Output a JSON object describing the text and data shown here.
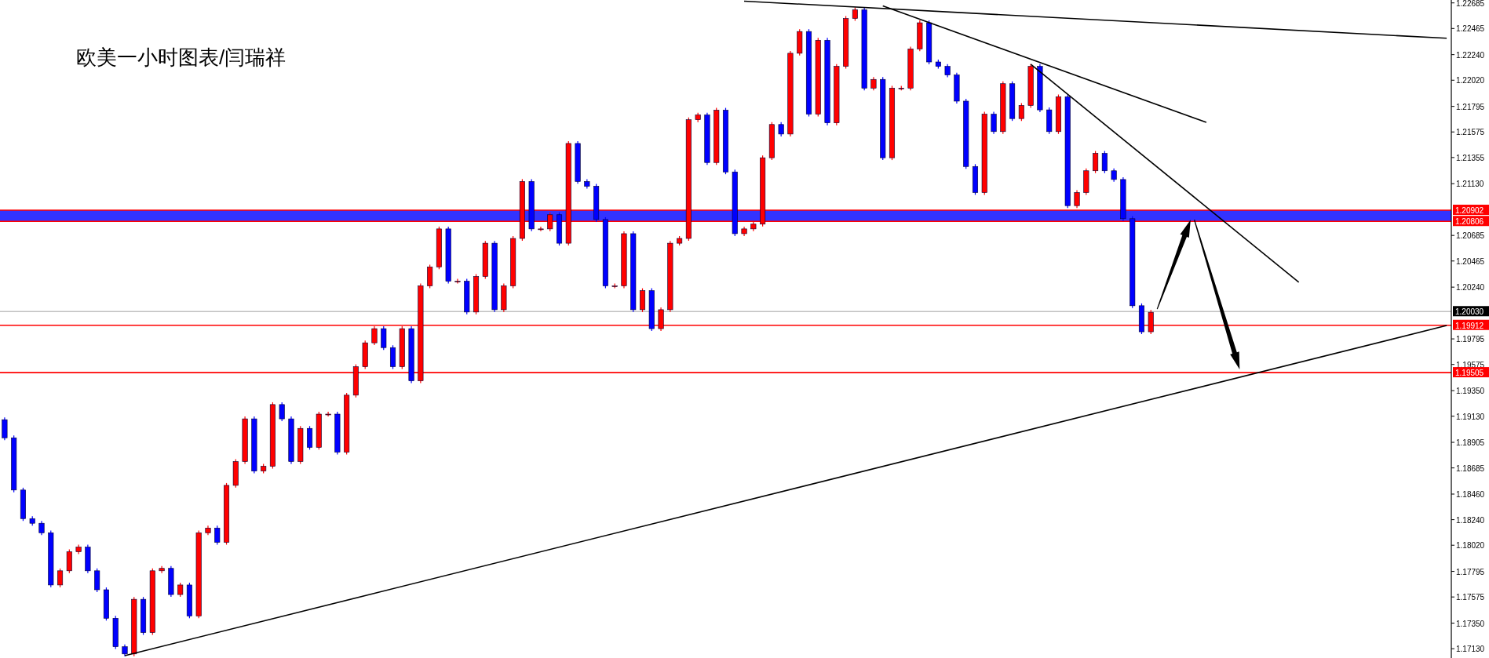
{
  "chart_data": {
    "type": "candlestick",
    "title": "欧美一小时图表/闫瑞祥",
    "categories": [
      null,
      null,
      null,
      null,
      null,
      null,
      null,
      null,
      null,
      null,
      null,
      null,
      null,
      null,
      null,
      null,
      null,
      null,
      null,
      null,
      null,
      null,
      null,
      null,
      null,
      null,
      null,
      null,
      null,
      null,
      null,
      null,
      null,
      null,
      null,
      null,
      null,
      null,
      null,
      null,
      null,
      null,
      null,
      null,
      null,
      null,
      null,
      null,
      null,
      null,
      null,
      null,
      null,
      null,
      null,
      null,
      null,
      null,
      null,
      null,
      null,
      null,
      null,
      null,
      null,
      null,
      null,
      null,
      null,
      null,
      null,
      null,
      null,
      null,
      null,
      null,
      null,
      null,
      null,
      null,
      null,
      null,
      null,
      null,
      null,
      null,
      null,
      null,
      null,
      null,
      null,
      null,
      null,
      null,
      null,
      null,
      null,
      null,
      null,
      null,
      null,
      null,
      null,
      null,
      null,
      null,
      null,
      null,
      null,
      null,
      null,
      null,
      null,
      null,
      null,
      null,
      null,
      null,
      null,
      null,
      null,
      null,
      null,
      null,
      null,
      null,
      null,
      null,
      null,
      null,
      null,
      null,
      null,
      null,
      null,
      null,
      null,
      null,
      null,
      null,
      null,
      null,
      null,
      null,
      null,
      null,
      null,
      null,
      null,
      null,
      null,
      null,
      null,
      null,
      null,
      null,
      null
    ],
    "colors": [
      "#0000ff",
      "#0000ff",
      "#0000ff",
      "#0000ff",
      "#0000ff",
      "#0000ff",
      "#ff0000",
      "#ff0000",
      "#ff0000",
      "#0000ff",
      "#0000ff",
      "#0000ff",
      "#0000ff",
      "#0000ff",
      "#ff0000",
      "#0000ff",
      "#ff0000",
      "#ff0000",
      "#0000ff",
      "#ff0000",
      "#0000ff",
      "#ff0000",
      "#ff0000",
      "#0000ff",
      "#ff0000",
      "#ff0000",
      "#ff0000",
      "#0000ff",
      "#ff0000",
      "#ff0000",
      "#0000ff",
      "#0000ff",
      "#ff0000",
      "#0000ff",
      "#ff0000",
      "#ff0000",
      "#0000ff",
      "#ff0000",
      "#ff0000",
      "#ff0000",
      "#ff0000",
      "#0000ff",
      "#0000ff",
      "#ff0000",
      "#0000ff",
      "#ff0000",
      "#ff0000",
      "#ff0000",
      "#0000ff",
      "#ff0000",
      "#0000ff",
      "#ff0000",
      "#ff0000",
      "#0000ff",
      "#ff0000",
      "#ff0000",
      "#ff0000",
      "#0000ff",
      "#ff0000",
      "#ff0000",
      "#0000ff",
      "#ff0000",
      "#0000ff",
      "#0000ff",
      "#0000ff",
      "#0000ff",
      "#ff0000",
      "#ff0000",
      "#0000ff",
      "#ff0000",
      "#0000ff",
      "#ff0000",
      "#ff0000",
      "#ff0000",
      "#ff0000",
      "#ff0000",
      "#0000ff",
      "#ff0000",
      "#0000ff",
      "#0000ff",
      "#ff0000",
      "#ff0000",
      "#ff0000",
      "#ff0000",
      "#0000ff",
      "#ff0000",
      "#ff0000",
      "#0000ff",
      "#ff0000",
      "#0000ff",
      "#ff0000",
      "#ff0000",
      "#ff0000",
      "#0000ff",
      "#ff0000",
      "#0000ff",
      "#ff0000",
      "#ff0000",
      "#ff0000",
      "#ff0000",
      "#0000ff",
      "#0000ff",
      "#0000ff",
      "#0000ff",
      "#0000ff",
      "#0000ff",
      "#ff0000",
      "#0000ff",
      "#ff0000",
      "#0000ff",
      "#ff0000",
      "#ff0000",
      "#0000ff",
      "#0000ff",
      "#ff0000",
      "#0000ff",
      "#ff0000",
      "#ff0000",
      "#ff0000",
      "#0000ff",
      "#0000ff",
      "#0000ff",
      "#0000ff",
      "#0000ff",
      "#ff0000",
      null,
      null,
      null,
      null,
      null,
      null,
      null,
      null,
      null,
      null,
      null,
      null,
      null,
      null,
      null,
      null,
      null,
      null,
      null,
      null,
      null,
      null,
      null,
      null,
      null,
      null,
      null,
      null,
      null,
      null,
      null,
      null
    ],
    "ohlc": [
      [
        1.191,
        1.1912,
        1.18924,
        1.18944
      ],
      [
        1.18944,
        1.18964,
        1.18475,
        1.18495
      ],
      [
        1.18495,
        1.18515,
        1.18229,
        1.18249
      ],
      [
        1.18249,
        1.18269,
        1.18189,
        1.18209
      ],
      [
        1.18209,
        1.18229,
        1.18107,
        1.18127
      ],
      [
        1.18127,
        1.18147,
        1.17658,
        1.17678
      ],
      [
        1.17678,
        1.1782,
        1.17658,
        1.178
      ],
      [
        1.178,
        1.17984,
        1.1778,
        1.17964
      ],
      [
        1.17964,
        1.18024,
        1.17944,
        1.18004
      ],
      [
        1.18004,
        1.18024,
        1.1778,
        1.178
      ],
      [
        1.178,
        1.1782,
        1.17617,
        1.17637
      ],
      [
        1.17637,
        1.17657,
        1.17372,
        1.17392
      ],
      [
        1.17392,
        1.17412,
        1.17127,
        1.17147
      ],
      [
        1.17147,
        1.17167,
        1.17065,
        1.17085
      ],
      [
        1.17085,
        1.17575,
        1.17065,
        1.17555
      ],
      [
        1.17555,
        1.17575,
        1.17249,
        1.17269
      ],
      [
        1.17269,
        1.1782,
        1.17249,
        1.178
      ],
      [
        1.178,
        1.17841,
        1.1778,
        1.17821
      ],
      [
        1.17821,
        1.17841,
        1.17576,
        1.17596
      ],
      [
        1.17596,
        1.17698,
        1.17576,
        1.17678
      ],
      [
        1.17678,
        1.17698,
        1.17392,
        1.17412
      ],
      [
        1.17412,
        1.18147,
        1.17392,
        1.18127
      ],
      [
        1.18127,
        1.18188,
        1.18107,
        1.18168
      ],
      [
        1.18168,
        1.18188,
        1.18025,
        1.18045
      ],
      [
        1.18045,
        1.18555,
        1.18025,
        1.18535
      ],
      [
        1.18535,
        1.1876,
        1.18515,
        1.1874
      ],
      [
        1.1874,
        1.19127,
        1.1872,
        1.19107
      ],
      [
        1.19107,
        1.19127,
        1.18638,
        1.18658
      ],
      [
        1.18658,
        1.18719,
        1.18638,
        1.18699
      ],
      [
        1.18699,
        1.1925,
        1.18679,
        1.1923
      ],
      [
        1.1923,
        1.1925,
        1.19087,
        1.19107
      ],
      [
        1.19107,
        1.19127,
        1.1872,
        1.1874
      ],
      [
        1.1874,
        1.19045,
        1.1872,
        1.19025
      ],
      [
        1.19025,
        1.19045,
        1.18842,
        1.18862
      ],
      [
        1.18862,
        1.19168,
        1.18842,
        1.19148
      ],
      [
        1.19148,
        1.19168,
        1.19128,
        1.19148
      ],
      [
        1.19148,
        1.19168,
        1.18801,
        1.18821
      ],
      [
        1.18821,
        1.19331,
        1.18801,
        1.19311
      ],
      [
        1.19311,
        1.19576,
        1.19291,
        1.19556
      ],
      [
        1.19556,
        1.19781,
        1.19536,
        1.19761
      ],
      [
        1.19761,
        1.19903,
        1.19741,
        1.19883
      ],
      [
        1.19883,
        1.19903,
        1.197,
        1.1972
      ],
      [
        1.1972,
        1.1974,
        1.19536,
        1.19556
      ],
      [
        1.19556,
        1.19903,
        1.19536,
        1.19883
      ],
      [
        1.19883,
        1.19903,
        1.19414,
        1.19434
      ],
      [
        1.19434,
        1.20271,
        1.19414,
        1.20251
      ],
      [
        1.20251,
        1.20434,
        1.20231,
        1.20414
      ],
      [
        1.20414,
        1.20761,
        1.20394,
        1.20741
      ],
      [
        1.20741,
        1.20761,
        1.20271,
        1.20291
      ],
      [
        1.20291,
        1.20311,
        1.20271,
        1.20291
      ],
      [
        1.20291,
        1.20311,
        1.20006,
        1.20026
      ],
      [
        1.20026,
        1.20352,
        1.20006,
        1.20332
      ],
      [
        1.20332,
        1.20638,
        1.20312,
        1.20618
      ],
      [
        1.20618,
        1.20638,
        1.20026,
        1.20046
      ],
      [
        1.20046,
        1.20271,
        1.20026,
        1.20251
      ],
      [
        1.20251,
        1.20679,
        1.20231,
        1.20659
      ],
      [
        1.20659,
        1.21169,
        1.20639,
        1.21149
      ],
      [
        1.21149,
        1.21169,
        1.20721,
        1.20741
      ],
      [
        1.20741,
        1.20761,
        1.20721,
        1.20741
      ],
      [
        1.20741,
        1.20883,
        1.20721,
        1.20863
      ],
      [
        1.20863,
        1.20883,
        1.20598,
        1.20618
      ],
      [
        1.20618,
        1.21496,
        1.20598,
        1.21476
      ],
      [
        1.21476,
        1.21496,
        1.21129,
        1.21149
      ],
      [
        1.21149,
        1.21169,
        1.21088,
        1.21108
      ],
      [
        1.21108,
        1.21128,
        1.20802,
        1.20822
      ],
      [
        1.20822,
        1.20842,
        1.20231,
        1.20251
      ],
      [
        1.20251,
        1.20271,
        1.20231,
        1.20251
      ],
      [
        1.20251,
        1.2072,
        1.20231,
        1.207
      ],
      [
        1.207,
        1.2072,
        1.20026,
        1.20046
      ],
      [
        1.20046,
        1.2023,
        1.20026,
        1.2021
      ],
      [
        1.2021,
        1.2023,
        1.19863,
        1.19883
      ],
      [
        1.19883,
        1.20066,
        1.19863,
        1.20046
      ],
      [
        1.20046,
        1.20638,
        1.20026,
        1.20618
      ],
      [
        1.20618,
        1.20679,
        1.20598,
        1.20659
      ],
      [
        1.20659,
        1.217,
        1.20639,
        1.2168
      ],
      [
        1.2168,
        1.21741,
        1.2166,
        1.21721
      ],
      [
        1.21721,
        1.21741,
        1.21292,
        1.21312
      ],
      [
        1.21312,
        1.21782,
        1.21292,
        1.21762
      ],
      [
        1.21762,
        1.21782,
        1.21211,
        1.21231
      ],
      [
        1.21231,
        1.21251,
        1.2068,
        1.207
      ],
      [
        1.207,
        1.20761,
        1.2068,
        1.20741
      ],
      [
        1.20741,
        1.20802,
        1.20721,
        1.20782
      ],
      [
        1.20782,
        1.21373,
        1.20762,
        1.21353
      ],
      [
        1.21353,
        1.21659,
        1.21333,
        1.21639
      ],
      [
        1.21639,
        1.21659,
        1.21537,
        1.21557
      ],
      [
        1.21557,
        1.22272,
        1.21537,
        1.22252
      ],
      [
        1.22252,
        1.22459,
        1.22232,
        1.22439
      ],
      [
        1.22439,
        1.22459,
        1.21708,
        1.21728
      ],
      [
        1.21728,
        1.22384,
        1.21708,
        1.22364
      ],
      [
        1.22364,
        1.22384,
        1.21633,
        1.21653
      ],
      [
        1.21653,
        1.22159,
        1.21633,
        1.22139
      ],
      [
        1.22139,
        1.22571,
        1.22119,
        1.22551
      ],
      [
        1.22551,
        1.22646,
        1.22531,
        1.22626
      ],
      [
        1.22626,
        1.22646,
        1.21932,
        1.21952
      ],
      [
        1.21952,
        1.22047,
        1.21932,
        1.22027
      ],
      [
        1.22027,
        1.22047,
        1.21333,
        1.21353
      ],
      [
        1.21353,
        1.21972,
        1.21333,
        1.21952
      ],
      [
        1.21952,
        1.21972,
        1.21932,
        1.21952
      ],
      [
        1.21952,
        1.22309,
        1.21932,
        1.22289
      ],
      [
        1.22289,
        1.22534,
        1.22269,
        1.22514
      ],
      [
        1.22514,
        1.22534,
        1.22157,
        1.22177
      ],
      [
        1.22177,
        1.22197,
        1.22119,
        1.22139
      ],
      [
        1.22139,
        1.22159,
        1.22045,
        1.22065
      ],
      [
        1.22065,
        1.22085,
        1.2182,
        1.2184
      ],
      [
        1.2184,
        1.2186,
        1.21258,
        1.21278
      ],
      [
        1.21278,
        1.21298,
        1.21034,
        1.21054
      ],
      [
        1.21054,
        1.21748,
        1.21034,
        1.21728
      ],
      [
        1.21728,
        1.21748,
        1.21558,
        1.21578
      ],
      [
        1.21578,
        1.2201,
        1.21558,
        1.2199
      ],
      [
        1.2199,
        1.2201,
        1.2167,
        1.2169
      ],
      [
        1.2169,
        1.21823,
        1.2167,
        1.21803
      ],
      [
        1.21803,
        1.22159,
        1.21783,
        1.22139
      ],
      [
        1.22139,
        1.22159,
        1.21745,
        1.21765
      ],
      [
        1.21765,
        1.21785,
        1.21558,
        1.21578
      ],
      [
        1.21578,
        1.21897,
        1.21558,
        1.21877
      ],
      [
        1.21877,
        1.21897,
        1.20921,
        1.20941
      ],
      [
        1.20941,
        1.21074,
        1.20921,
        1.21054
      ],
      [
        1.21054,
        1.21261,
        1.21034,
        1.21241
      ],
      [
        1.21241,
        1.21411,
        1.21221,
        1.21391
      ],
      [
        1.21391,
        1.21411,
        1.21221,
        1.21241
      ],
      [
        1.21241,
        1.21261,
        1.21146,
        1.21166
      ],
      [
        1.21166,
        1.21186,
        1.20809,
        1.20829
      ],
      [
        1.20829,
        1.20849,
        1.2006,
        1.2008
      ],
      [
        1.2008,
        1.201,
        1.19836,
        1.19856
      ],
      [
        1.19856,
        1.20044,
        1.19836,
        1.20024
      ],
      null,
      null,
      null,
      null,
      null,
      null,
      null,
      null,
      null,
      null,
      null,
      null,
      null,
      null,
      null,
      null,
      null,
      null,
      null,
      null,
      null,
      null,
      null,
      null,
      null,
      null,
      null,
      null,
      null,
      null,
      null,
      null
    ],
    "series": [
      {
        "type": "line",
        "color": "#000000",
        "values": [
          null,
          null,
          null,
          null,
          null,
          null,
          null,
          null,
          null,
          null,
          null,
          null,
          null,
          1.1707,
          null,
          null,
          null,
          null,
          null,
          null,
          null,
          null,
          null,
          null,
          null,
          null,
          null,
          null,
          null,
          null,
          null,
          null,
          null,
          null,
          null,
          null,
          null,
          null,
          null,
          null,
          null,
          null,
          null,
          null,
          null,
          null,
          null,
          null,
          null,
          null,
          null,
          null,
          null,
          null,
          null,
          null,
          null,
          null,
          null,
          null,
          null,
          null,
          null,
          null,
          null,
          null,
          null,
          null,
          null,
          null,
          null,
          null,
          null,
          null,
          null,
          null,
          null,
          null,
          null,
          null,
          null,
          null,
          null,
          null,
          null,
          null,
          null,
          null,
          null,
          null,
          null,
          null,
          null,
          null,
          null,
          null,
          null,
          null,
          null,
          null,
          null,
          null,
          null,
          null,
          null,
          null,
          null,
          null,
          null,
          null,
          null,
          null,
          null,
          null,
          null,
          null,
          null,
          null,
          null,
          null,
          null,
          null,
          null,
          null,
          null,
          null,
          null,
          null,
          null,
          null,
          null,
          null,
          null,
          null,
          null,
          null,
          null,
          null,
          null,
          null,
          null,
          null,
          null,
          null,
          null,
          null,
          null,
          null,
          null,
          null,
          null,
          null,
          null,
          null,
          null,
          null,
          1.1991
        ]
      },
      {
        "type": "line",
        "color": "#000000",
        "values": [
          null,
          null,
          null,
          null,
          null,
          null,
          null,
          null,
          null,
          null,
          null,
          null,
          null,
          null,
          null,
          null,
          null,
          null,
          null,
          null,
          null,
          null,
          null,
          null,
          null,
          null,
          null,
          null,
          null,
          null,
          null,
          null,
          null,
          null,
          null,
          null,
          null,
          null,
          null,
          null,
          null,
          null,
          null,
          null,
          null,
          null,
          null,
          null,
          null,
          null,
          null,
          null,
          null,
          null,
          null,
          null,
          null,
          null,
          null,
          null,
          null,
          null,
          null,
          null,
          null,
          null,
          null,
          null,
          null,
          null,
          null,
          null,
          null,
          null,
          null,
          null,
          null,
          null,
          null,
          null,
          1.227,
          null,
          null,
          null,
          null,
          null,
          null,
          null,
          null,
          null,
          null,
          null,
          null,
          null,
          null,
          null,
          null,
          null,
          null,
          null,
          null,
          null,
          null,
          null,
          null,
          null,
          null,
          null,
          null,
          null,
          null,
          null,
          null,
          null,
          null,
          null,
          null,
          null,
          null,
          null,
          null,
          null,
          null,
          null,
          null,
          null,
          null,
          null,
          null,
          null,
          null,
          null,
          null,
          null,
          null,
          null,
          null,
          null,
          null,
          null,
          null,
          null,
          null,
          null,
          null,
          null,
          null,
          null,
          null,
          null,
          null,
          null,
          null,
          null,
          null,
          null,
          1.22381
        ]
      },
      {
        "type": "line",
        "color": "#000000",
        "values": [
          null,
          null,
          null,
          null,
          null,
          null,
          null,
          null,
          null,
          null,
          null,
          null,
          null,
          null,
          null,
          null,
          null,
          null,
          null,
          null,
          null,
          null,
          null,
          null,
          null,
          null,
          null,
          null,
          null,
          null,
          null,
          null,
          null,
          null,
          null,
          null,
          null,
          null,
          null,
          null,
          null,
          null,
          null,
          null,
          null,
          null,
          null,
          null,
          null,
          null,
          null,
          null,
          null,
          null,
          null,
          null,
          null,
          null,
          null,
          null,
          null,
          null,
          null,
          null,
          null,
          null,
          null,
          null,
          null,
          null,
          null,
          null,
          null,
          null,
          null,
          null,
          null,
          null,
          null,
          null,
          null,
          null,
          null,
          null,
          null,
          null,
          null,
          null,
          null,
          null,
          null,
          null,
          null,
          null,
          null,
          1.2266,
          null,
          null,
          null,
          null,
          null,
          null,
          null,
          null,
          null,
          null,
          null,
          null,
          null,
          null,
          null,
          null,
          null,
          null,
          null,
          null,
          null,
          null,
          null,
          null,
          null,
          null,
          null,
          null,
          null,
          null,
          null,
          null,
          null,
          null,
          1.21657,
          null,
          null,
          null,
          null,
          null,
          null,
          null,
          null,
          null,
          null,
          null,
          null,
          null,
          null,
          null,
          null,
          null,
          null,
          null,
          null,
          null,
          null,
          null,
          null,
          null,
          null
        ]
      },
      {
        "type": "line",
        "color": "#000000",
        "values": [
          null,
          null,
          null,
          null,
          null,
          null,
          null,
          null,
          null,
          null,
          null,
          null,
          null,
          null,
          null,
          null,
          null,
          null,
          null,
          null,
          null,
          null,
          null,
          null,
          null,
          null,
          null,
          null,
          null,
          null,
          null,
          null,
          null,
          null,
          null,
          null,
          null,
          null,
          null,
          null,
          null,
          null,
          null,
          null,
          null,
          null,
          null,
          null,
          null,
          null,
          null,
          null,
          null,
          null,
          null,
          null,
          null,
          null,
          null,
          null,
          null,
          null,
          null,
          null,
          null,
          null,
          null,
          null,
          null,
          null,
          null,
          null,
          null,
          null,
          null,
          null,
          null,
          null,
          null,
          null,
          null,
          null,
          null,
          null,
          null,
          null,
          null,
          null,
          null,
          null,
          null,
          null,
          null,
          null,
          null,
          null,
          null,
          null,
          null,
          null,
          null,
          null,
          null,
          null,
          null,
          null,
          null,
          null,
          null,
          null,
          null,
          1.22158,
          null,
          null,
          null,
          null,
          null,
          null,
          null,
          null,
          null,
          null,
          null,
          null,
          null,
          null,
          null,
          null,
          null,
          null,
          null,
          null,
          null,
          null,
          null,
          null,
          null,
          null,
          null,
          null,
          1.20282,
          null,
          null,
          null,
          null,
          null,
          null,
          null,
          null,
          null,
          null,
          null,
          null,
          null,
          null,
          null,
          null
        ]
      }
    ],
    "ylim": [
      1.1705,
      1.2271
    ],
    "yticks": [
      1.22685,
      1.22465,
      {
        "value": 1.2224,
        "label": "1.22240"
      },
      {
        "value": 1.2202,
        "label": "1.22020"
      },
      1.21795,
      1.21575,
      1.21355,
      {
        "value": 1.2113,
        "label": "1.21130"
      },
      1.20685,
      1.20465,
      {
        "value": 1.2024,
        "label": "1.20240"
      },
      1.19795,
      1.19575,
      {
        "value": 1.1935,
        "label": "1.19350"
      },
      {
        "value": 1.1913,
        "label": "1.19130"
      },
      1.18905,
      1.18685,
      {
        "value": 1.1846,
        "label": "1.18460"
      },
      {
        "value": 1.1824,
        "label": "1.18240"
      },
      {
        "value": 1.1802,
        "label": "1.18020"
      },
      1.17795,
      1.17575,
      {
        "value": 1.1735,
        "label": "1.17350"
      },
      {
        "value": 1.1713,
        "label": "1.17130"
      }
    ],
    "bands": [
      {
        "axis": "y",
        "from": 1.20806,
        "to": 1.20902,
        "color": "#0000ff"
      }
    ],
    "ref_lines": [
      {
        "axis": "y",
        "value": 1.20902,
        "label": "1.20902",
        "color": "#ff0000"
      },
      {
        "axis": "y",
        "value": 1.20806,
        "label": "1.20806",
        "color": "#ff0000"
      },
      {
        "axis": "y",
        "value": 1.2003,
        "label": "1.20030",
        "color": "#c0c0c0"
      },
      {
        "axis": "y",
        "value": 1.19912,
        "label": "1.19912",
        "color": "#ff0000"
      },
      {
        "axis": "y",
        "value": 1.19505,
        "label": "1.19505",
        "color": "#ff0000"
      }
    ],
    "grid": false,
    "tick_labels": "y"
  }
}
